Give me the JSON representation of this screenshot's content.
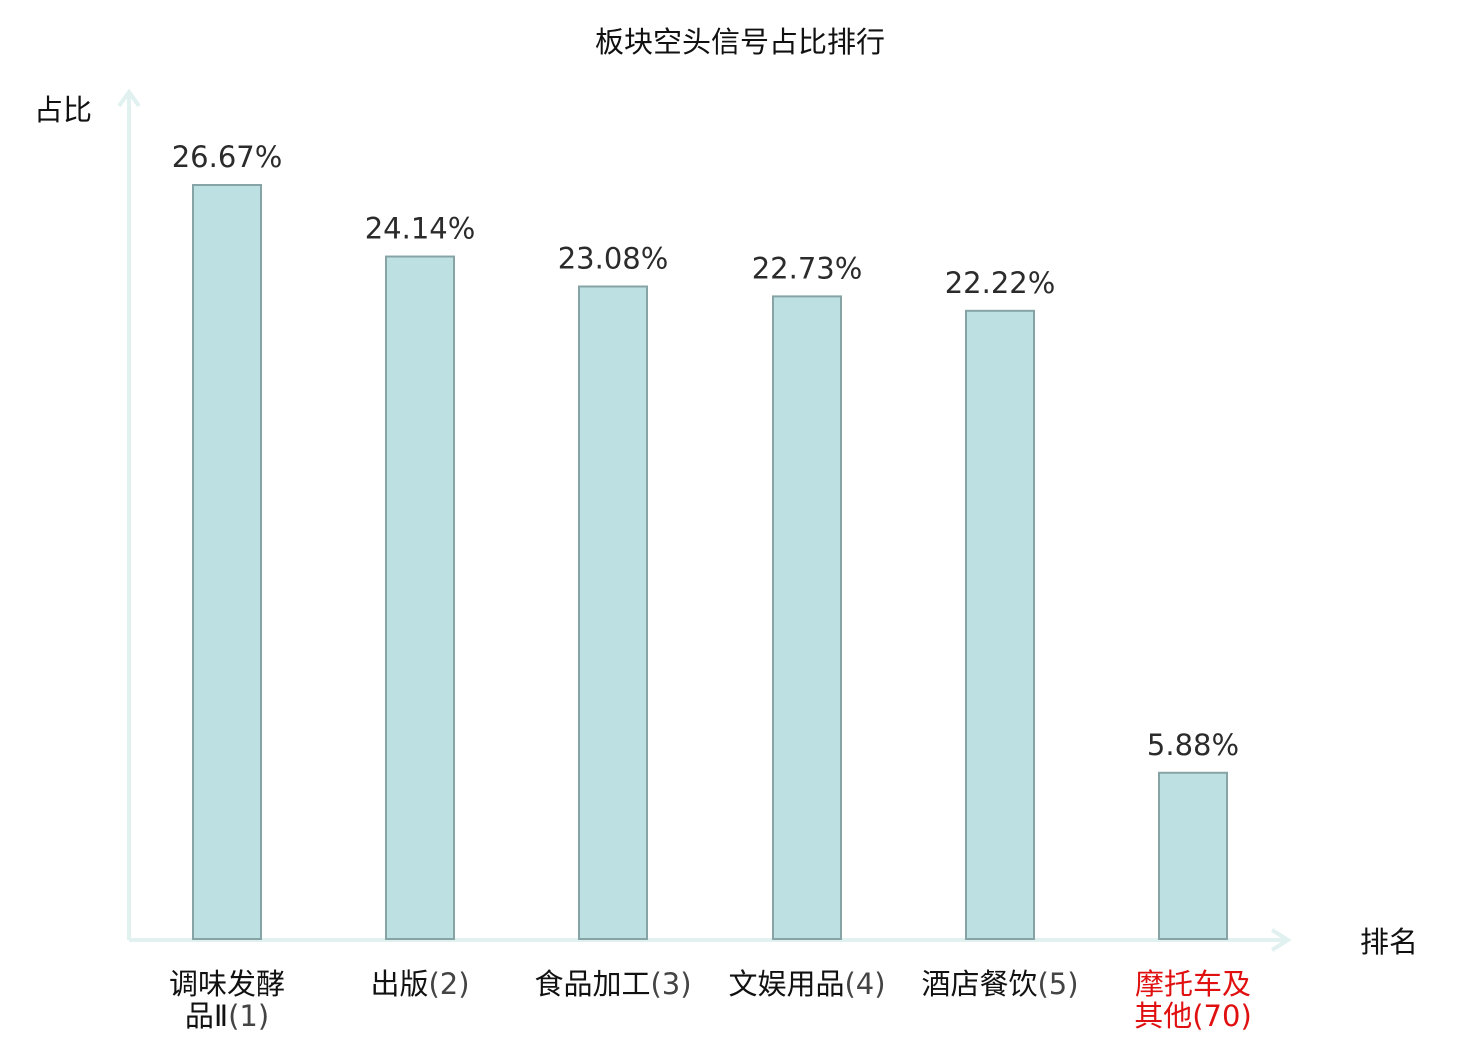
{
  "chart_data": {
    "type": "bar",
    "title": "板块空头信号占比排行",
    "xlabel": "排名",
    "ylabel": "占比",
    "categories": [
      {
        "name": "调味发酵品Ⅱ",
        "rank": "(1)",
        "highlight": false
      },
      {
        "name": "出版",
        "rank": "(2)",
        "highlight": false
      },
      {
        "name": "食品加工",
        "rank": "(3)",
        "highlight": false
      },
      {
        "name": "文娱用品",
        "rank": "(4)",
        "highlight": false
      },
      {
        "name": "酒店餐饮",
        "rank": "(5)",
        "highlight": false
      },
      {
        "name": "摩托车及其他",
        "rank": "(70)",
        "highlight": true
      }
    ],
    "values": [
      26.67,
      24.14,
      23.08,
      22.73,
      22.22,
      5.88
    ],
    "value_labels": [
      "26.67%",
      "24.14%",
      "23.08%",
      "22.73%",
      "22.22%",
      "5.88%"
    ],
    "ylim": [
      0,
      30
    ],
    "grid": false,
    "colors": {
      "bar_fill": "#bde0e3",
      "bar_stroke": "#86a4a6",
      "axis": "#e0f1ef",
      "text": "#2b2b2b",
      "label_text": "#111111",
      "rank_text": "#444444",
      "highlight": "#e01010"
    }
  }
}
